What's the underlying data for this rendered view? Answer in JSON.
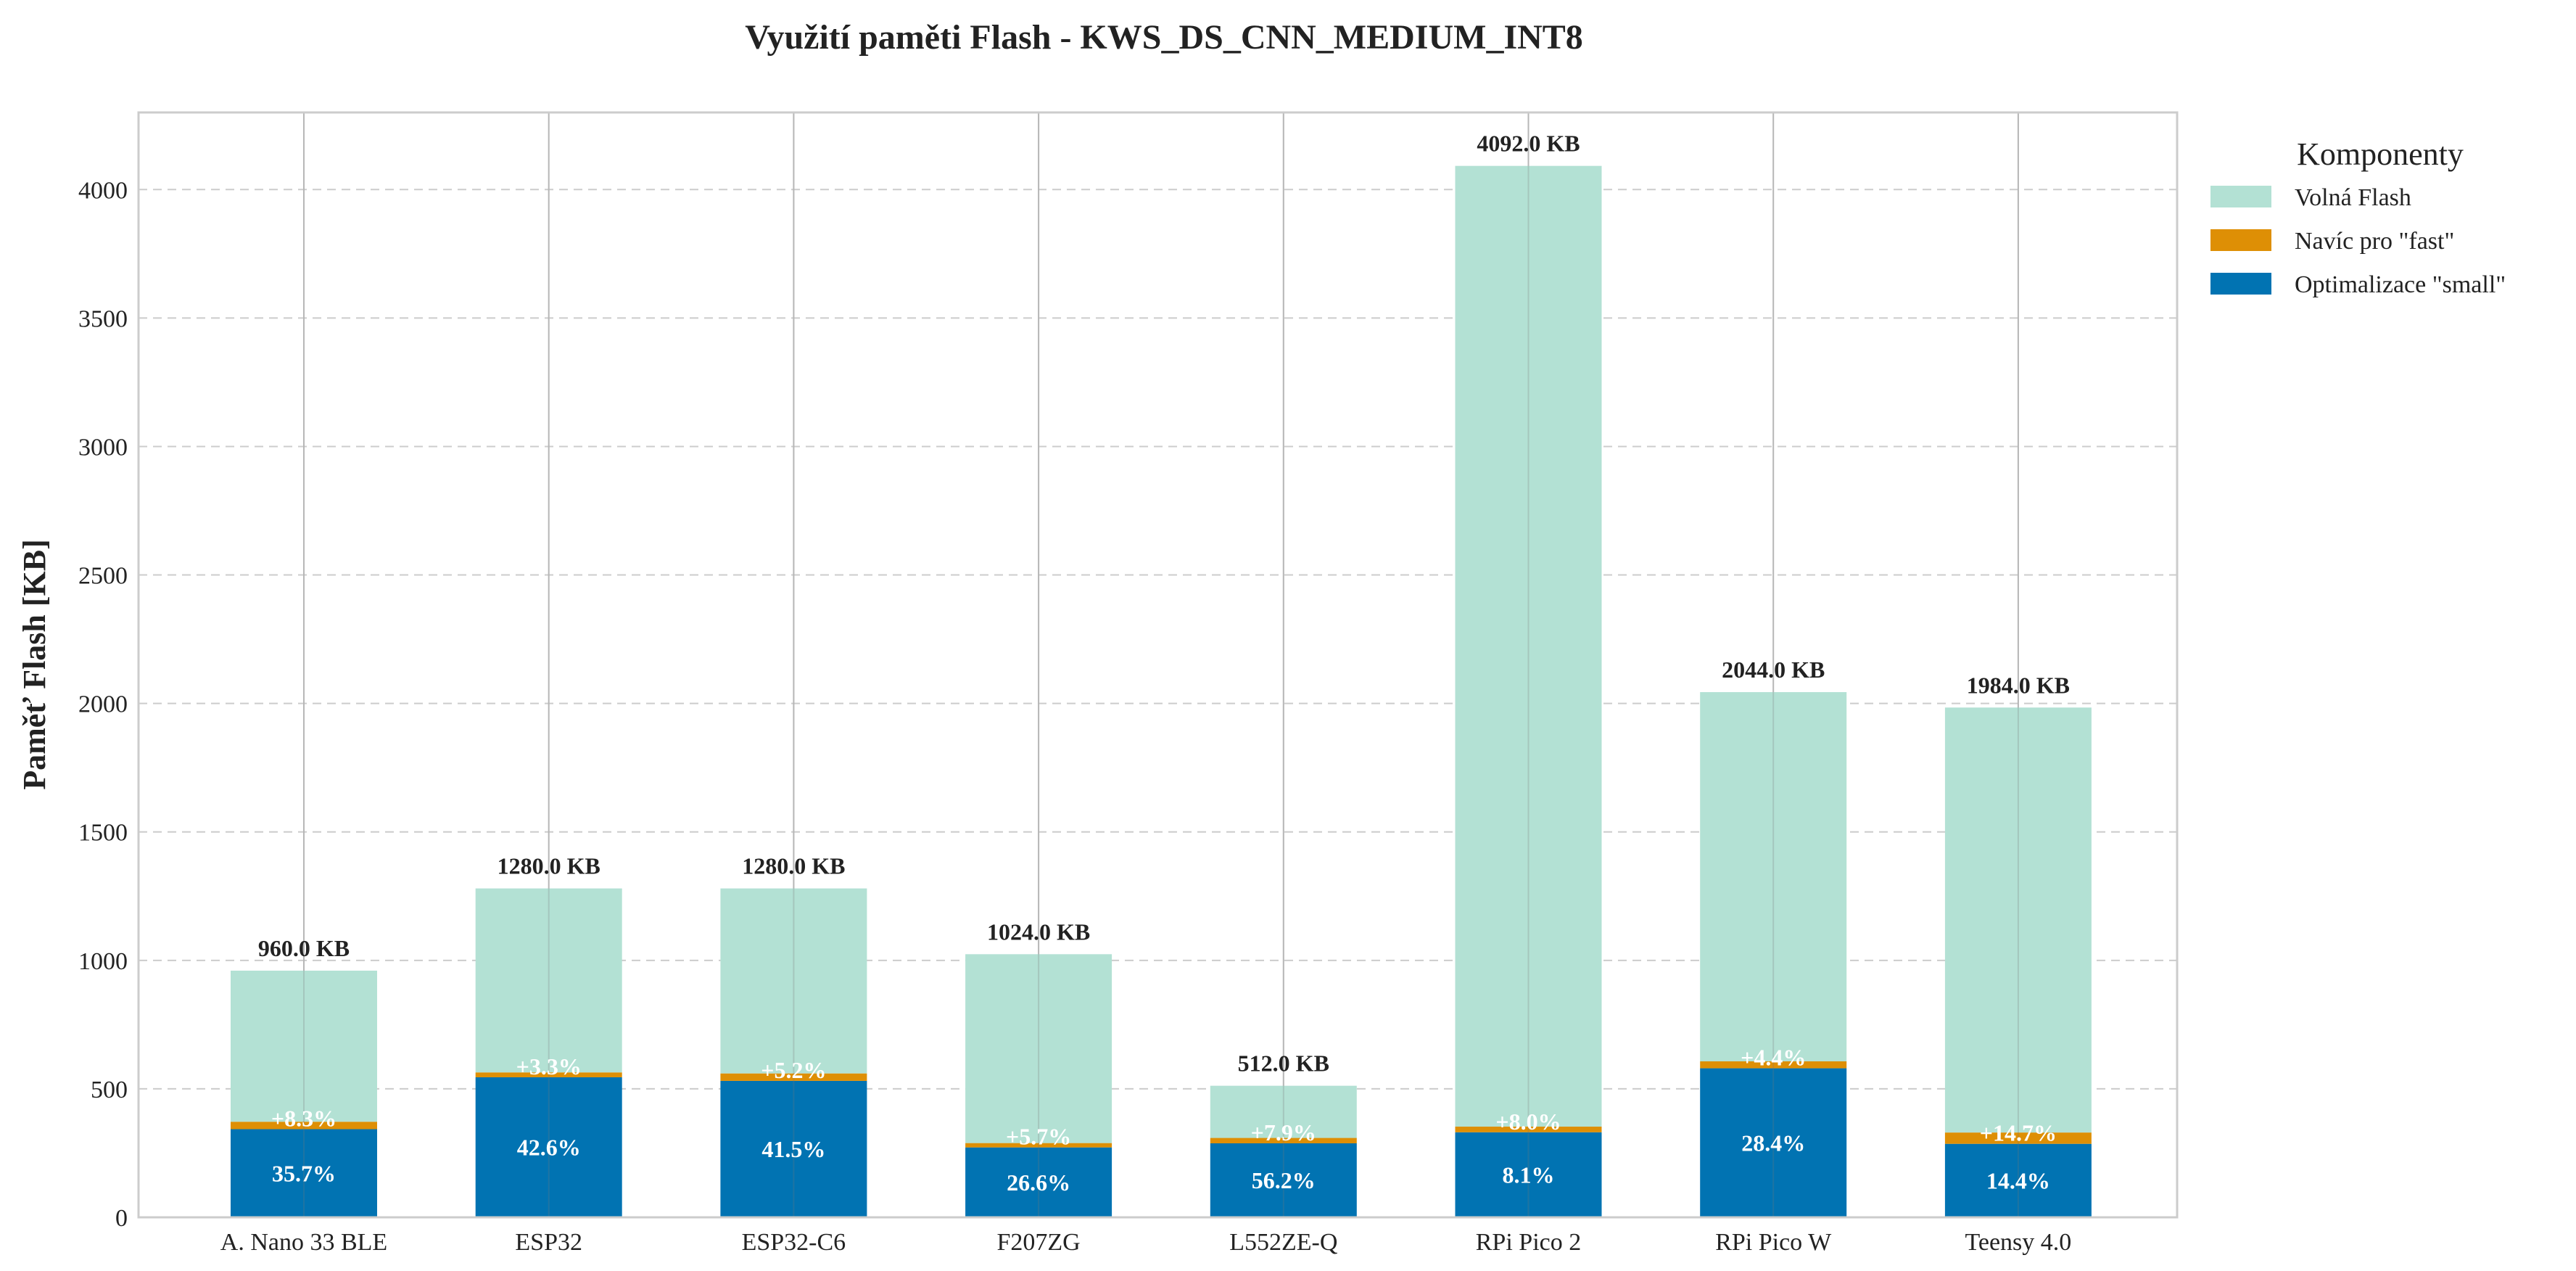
{
  "chart_data": {
    "type": "bar",
    "stacked": true,
    "title": "Využití paměti Flash - KWS_DS_CNN_MEDIUM_INT8",
    "xlabel": "",
    "ylabel": "Paměť Flash [KB]",
    "ylim": [
      0,
      4300
    ],
    "yticks": [
      0,
      500,
      1000,
      1500,
      2000,
      2500,
      3000,
      3500,
      4000
    ],
    "grid": "y dashed",
    "legend_position": "outside-right",
    "legend_title": "Komponenty",
    "categories": [
      "A. Nano 33 BLE",
      "ESP32",
      "ESP32-C6",
      "F207ZG",
      "L552ZE-Q",
      "RPi Pico 2",
      "RPi Pico W",
      "Teensy 4.0"
    ],
    "totals": [
      960,
      1280,
      1280,
      1024,
      512,
      4092,
      2044,
      1984
    ],
    "total_labels": [
      "960.0 KB",
      "1280.0 KB",
      "1280.0 KB",
      "1024.0 KB",
      "512.0 KB",
      "4092.0 KB",
      "2044.0 KB",
      "1984.0 KB"
    ],
    "series": [
      {
        "name": "Optimalizace \"small\"",
        "color": "#0173b2",
        "values": [
          343,
          545,
          531,
          272,
          288,
          331,
          580,
          286
        ],
        "labels": [
          "35.7%",
          "42.6%",
          "41.5%",
          "26.6%",
          "56.2%",
          "8.1%",
          "28.4%",
          "14.4%"
        ]
      },
      {
        "name": "Navíc pro \"fast\"",
        "color": "#de8f05",
        "values": [
          29,
          19,
          29,
          17,
          21,
          22,
          27,
          44
        ],
        "labels": [
          "+8.3%",
          "+3.3%",
          "+5.2%",
          "+5.7%",
          "+7.9%",
          "+8.0%",
          "+4.4%",
          "+14.7%"
        ]
      },
      {
        "name": "Volná Flash",
        "color": "#b3e1d4",
        "values": [
          588,
          716,
          720,
          735,
          203,
          3739,
          1437,
          1654
        ],
        "labels": []
      }
    ],
    "legend_order": [
      "Volná Flash",
      "Navíc pro \"fast\"",
      "Optimalizace \"small\""
    ]
  }
}
